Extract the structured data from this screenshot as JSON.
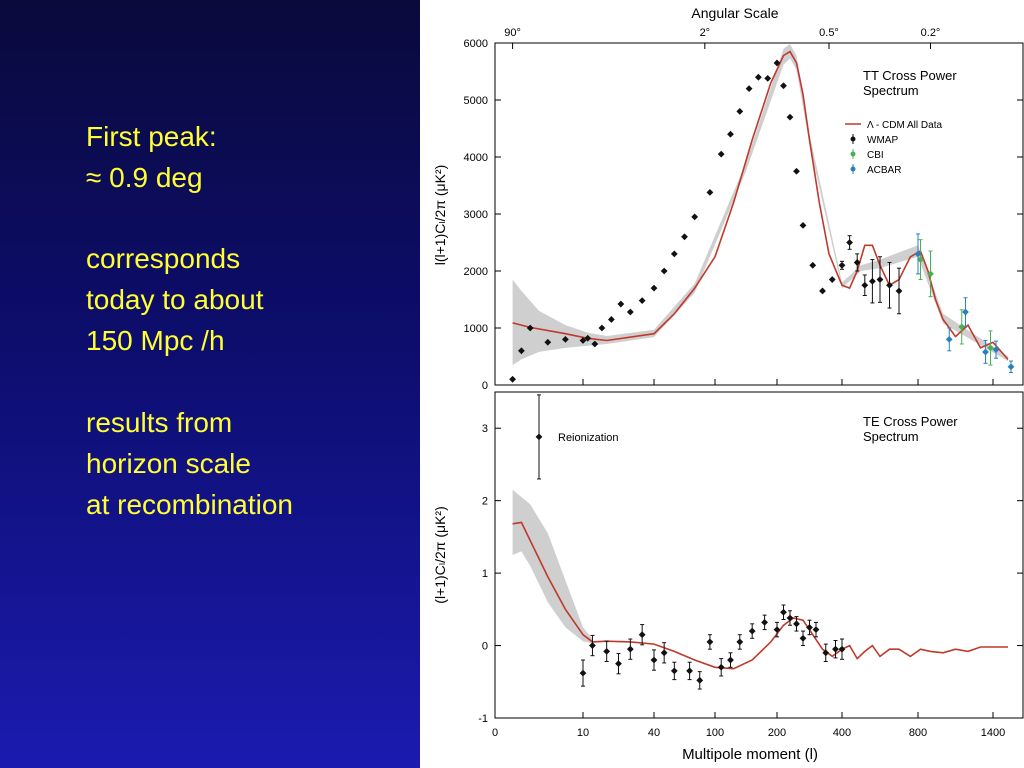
{
  "slide": {
    "lines_block1": [
      "First peak:",
      "≈ 0.9 deg"
    ],
    "lines_block2": [
      "corresponds",
      "today to about",
      "150 Mpc /h"
    ],
    "lines_block3": [
      "results from",
      "horizon scale",
      "at recombination"
    ],
    "text_color": "#ffff33"
  },
  "chart_data": [
    {
      "type": "scatter",
      "title": "TT Cross Power Spectrum",
      "title_lines": [
        "TT Cross Power",
        "Spectrum"
      ],
      "top_axis_label": "Angular Scale",
      "top_ticks": [
        {
          "label": "90°",
          "l": 2
        },
        {
          "label": "2°",
          "l": 90
        },
        {
          "label": "0.5°",
          "l": 360
        },
        {
          "label": "0.2°",
          "l": 900
        }
      ],
      "ylabel": "l(l+1)Cₗ/2π (μK²)",
      "ylim": [
        0,
        6000
      ],
      "yticks": [
        0,
        1000,
        2000,
        3000,
        4000,
        5000,
        6000
      ],
      "legend": [
        {
          "label": "Λ - CDM All Data",
          "kind": "line",
          "color": "#c0392b"
        },
        {
          "label": "WMAP",
          "kind": "point",
          "color": "#111111"
        },
        {
          "label": "CBI",
          "kind": "point",
          "color": "#4caf50"
        },
        {
          "label": "ACBAR",
          "kind": "point",
          "color": "#2a7fbf"
        }
      ],
      "model_curve": {
        "l": [
          2,
          4,
          8,
          12,
          20,
          40,
          60,
          80,
          100,
          130,
          160,
          190,
          220,
          240,
          260,
          280,
          300,
          330,
          360,
          400,
          440,
          480,
          520,
          560,
          600,
          650,
          700,
          760,
          820,
          880,
          940,
          1000,
          1100,
          1200,
          1300,
          1400,
          1500
        ],
        "value": [
          1090,
          1010,
          900,
          820,
          780,
          900,
          1250,
          1700,
          2250,
          3200,
          4300,
          5300,
          5780,
          5850,
          5650,
          5100,
          4300,
          3200,
          2300,
          1750,
          1700,
          2000,
          2450,
          2450,
          2100,
          1750,
          1850,
          2250,
          2350,
          2000,
          1500,
          1150,
          850,
          1050,
          650,
          750,
          450
        ]
      },
      "model_band": {
        "l": [
          2,
          3,
          5,
          8,
          12,
          20,
          40,
          80,
          150,
          220,
          240,
          260,
          300,
          400,
          500,
          600,
          800,
          1000,
          1500
        ],
        "upper": [
          1850,
          1650,
          1300,
          1050,
          920,
          860,
          970,
          1780,
          3900,
          5900,
          5980,
          5780,
          4400,
          1800,
          2100,
          2200,
          2450,
          1250,
          500
        ],
        "lower": [
          350,
          450,
          580,
          650,
          690,
          720,
          840,
          1620,
          3750,
          5620,
          5730,
          5530,
          4220,
          1700,
          2000,
          2050,
          2250,
          1080,
          420
        ]
      },
      "series": [
        {
          "name": "WMAP",
          "color": "#111111",
          "l": [
            2,
            3,
            4,
            6,
            8,
            10,
            12,
            15,
            18,
            22,
            26,
            30,
            35,
            40,
            50,
            60,
            70,
            80,
            95,
            110,
            125,
            140,
            155,
            170,
            185,
            200,
            220,
            240,
            260,
            280,
            310,
            340,
            370,
            400,
            440,
            480,
            520,
            560,
            600,
            650,
            700
          ],
          "value": [
            100,
            600,
            1000,
            750,
            800,
            780,
            820,
            720,
            1000,
            1150,
            1420,
            1280,
            1480,
            1700,
            2000,
            2300,
            2600,
            2950,
            3380,
            4050,
            4400,
            4800,
            5200,
            5400,
            5380,
            5650,
            5250,
            4700,
            3750,
            2800,
            2100,
            1650,
            1850,
            2100,
            2500,
            2150,
            1750,
            1820,
            1850,
            1750,
            1650
          ],
          "err": [
            0,
            0,
            0,
            0,
            0,
            0,
            0,
            0,
            0,
            0,
            0,
            0,
            0,
            0,
            0,
            0,
            0,
            0,
            0,
            0,
            0,
            0,
            0,
            0,
            0,
            0,
            0,
            0,
            0,
            0,
            0,
            0,
            0,
            70,
            120,
            150,
            180,
            380,
            400,
            400,
            400
          ]
        },
        {
          "name": "CBI",
          "color": "#4caf50",
          "l": [
            820,
            900,
            1150,
            1380
          ],
          "value": [
            2200,
            1950,
            1020,
            650
          ],
          "err": [
            350,
            400,
            300,
            300
          ]
        },
        {
          "name": "ACBAR",
          "color": "#2a7fbf",
          "l": [
            800,
            1050,
            1180,
            1340,
            1420,
            1520
          ],
          "value": [
            2300,
            800,
            1280,
            580,
            620,
            320
          ],
          "err": [
            350,
            200,
            250,
            200,
            150,
            100
          ]
        }
      ]
    },
    {
      "type": "scatter",
      "title": "TE Cross Power Spectrum",
      "title_lines": [
        "TE Cross Power",
        "Spectrum"
      ],
      "ylabel": "(l+1)Cₗ/2π (μK²)",
      "xlabel": "Multipole moment (l)",
      "ylim": [
        -1,
        3.5
      ],
      "yticks": [
        -1,
        0,
        1,
        2,
        3
      ],
      "xticks": [
        {
          "label": "0",
          "l": 0
        },
        {
          "label": "10",
          "l": 10
        },
        {
          "label": "40",
          "l": 40
        },
        {
          "label": "100",
          "l": 100
        },
        {
          "label": "200",
          "l": 200
        },
        {
          "label": "400",
          "l": 400
        },
        {
          "label": "800",
          "l": 800
        },
        {
          "label": "1400",
          "l": 1400
        }
      ],
      "annotation": "Reionization",
      "model_curve": {
        "l": [
          2,
          3,
          4,
          6,
          8,
          10,
          14,
          20,
          30,
          40,
          60,
          80,
          100,
          130,
          160,
          190,
          220,
          250,
          280,
          310,
          340,
          370,
          400,
          440,
          480,
          520,
          560,
          600,
          650,
          700,
          760,
          820,
          900,
          1000,
          1100,
          1200,
          1300,
          1400,
          1500
        ],
        "value": [
          1.68,
          1.7,
          1.45,
          0.95,
          0.5,
          0.15,
          0.05,
          0.06,
          0.05,
          0.02,
          -0.08,
          -0.2,
          -0.3,
          -0.32,
          -0.2,
          0.05,
          0.28,
          0.38,
          0.35,
          0.15,
          -0.05,
          -0.15,
          -0.05,
          0.0,
          -0.18,
          -0.08,
          0.0,
          -0.15,
          -0.05,
          -0.05,
          -0.15,
          -0.05,
          -0.08,
          -0.1,
          -0.05,
          -0.08,
          -0.02,
          -0.02,
          -0.02
        ],
        "band_upper": [
          2.15,
          2.05,
          1.95,
          1.55,
          0.9,
          0.25,
          0.09
        ],
        "band_lower": [
          1.25,
          1.3,
          1.1,
          0.6,
          0.25,
          0.06,
          0.03
        ]
      },
      "points": {
        "l": [
          5,
          10,
          14,
          20,
          25,
          30,
          35,
          40,
          50,
          60,
          75,
          85,
          95,
          110,
          125,
          140,
          160,
          180,
          200,
          220,
          240,
          260,
          280,
          300,
          320,
          350,
          380,
          400
        ],
        "value": [
          2.88,
          -0.38,
          0.0,
          -0.08,
          -0.25,
          -0.05,
          0.15,
          -0.2,
          -0.1,
          -0.35,
          -0.35,
          -0.48,
          0.05,
          -0.3,
          -0.2,
          0.05,
          0.2,
          0.32,
          0.22,
          0.46,
          0.38,
          0.3,
          0.1,
          0.25,
          0.22,
          -0.1,
          -0.05,
          -0.05
        ],
        "err": [
          0.58,
          0.18,
          0.14,
          0.14,
          0.14,
          0.14,
          0.14,
          0.14,
          0.14,
          0.12,
          0.12,
          0.12,
          0.1,
          0.12,
          0.1,
          0.1,
          0.1,
          0.1,
          0.1,
          0.1,
          0.1,
          0.1,
          0.1,
          0.1,
          0.1,
          0.12,
          0.12,
          0.14
        ]
      }
    }
  ]
}
